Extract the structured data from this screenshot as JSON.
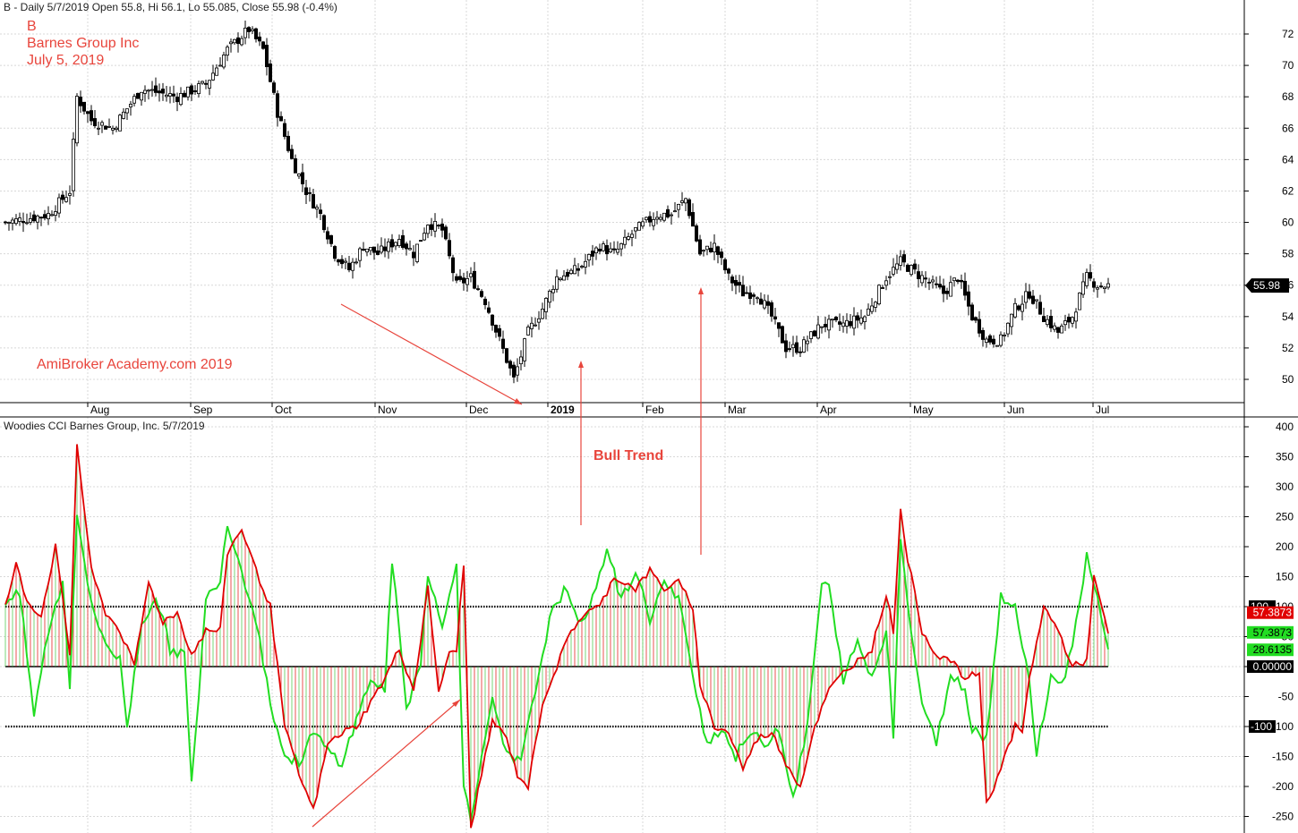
{
  "header": {
    "price_title": "B - Daily 5/7/2019 Open 55.8, Hi 56.1, Lo 55.085, Close 55.98 (-0.4%)",
    "cci_title": "Woodies CCI  Barnes Group, Inc. 5/7/2019"
  },
  "annotations": {
    "ticker": "B",
    "company": "Barnes Group Inc",
    "date": "July 5, 2019",
    "watermark": "AmiBroker Academy.com   2019",
    "bull_trend": "Bull Trend"
  },
  "colors": {
    "bull_candle": "#ffffff",
    "bear_candle": "#000000",
    "cci_line": "#e00000",
    "turbo_line": "#22dd22",
    "annotation": "#e8453c",
    "grid": "#d8d8d8"
  },
  "chart_data": [
    {
      "type": "candlestick",
      "title": "B - Daily 5/7/2019 Open 55.8, Hi 56.1, Lo 55.085, Close 55.98 (-0.4%)",
      "x_tick_labels": [
        "Aug",
        "Sep",
        "Oct",
        "Nov",
        "Dec",
        "2019",
        "Feb",
        "Mar",
        "Apr",
        "May",
        "Jun",
        "Jul"
      ],
      "y_ticks": [
        50,
        52,
        54,
        56,
        58,
        60,
        62,
        64,
        66,
        68,
        70,
        72
      ],
      "ylim": [
        48.5,
        73
      ],
      "last_close_label": "55.98",
      "close_path_keypoints": [
        [
          0,
          60.0
        ],
        [
          12,
          60.5
        ],
        [
          18,
          62.0
        ],
        [
          20,
          68.0
        ],
        [
          24,
          66.5
        ],
        [
          30,
          66.0
        ],
        [
          38,
          68.5
        ],
        [
          48,
          68.0
        ],
        [
          56,
          68.8
        ],
        [
          62,
          71.0
        ],
        [
          68,
          72.3
        ],
        [
          72,
          71.0
        ],
        [
          76,
          67.0
        ],
        [
          80,
          64.0
        ],
        [
          84,
          62.0
        ],
        [
          88,
          60.5
        ],
        [
          92,
          58.0
        ],
        [
          96,
          57.0
        ],
        [
          100,
          58.5
        ],
        [
          104,
          58.0
        ],
        [
          110,
          59.0
        ],
        [
          114,
          58.0
        ],
        [
          118,
          60.0
        ],
        [
          122,
          59.5
        ],
        [
          126,
          56.0
        ],
        [
          130,
          56.5
        ],
        [
          134,
          55.0
        ],
        [
          138,
          52.5
        ],
        [
          142,
          50.0
        ],
        [
          146,
          53.0
        ],
        [
          150,
          54.5
        ],
        [
          154,
          56.5
        ],
        [
          160,
          57.0
        ],
        [
          166,
          58.5
        ],
        [
          170,
          58.0
        ],
        [
          176,
          59.5
        ],
        [
          182,
          60.5
        ],
        [
          186,
          60.5
        ],
        [
          190,
          61.5
        ],
        [
          194,
          58.0
        ],
        [
          198,
          58.5
        ],
        [
          202,
          56.5
        ],
        [
          206,
          55.5
        ],
        [
          210,
          55.5
        ],
        [
          214,
          54.0
        ],
        [
          218,
          52.0
        ],
        [
          222,
          52.0
        ],
        [
          228,
          53.5
        ],
        [
          234,
          53.5
        ],
        [
          240,
          54.0
        ],
        [
          246,
          56.5
        ],
        [
          250,
          57.5
        ],
        [
          256,
          56.5
        ],
        [
          262,
          55.5
        ],
        [
          266,
          56.5
        ],
        [
          270,
          54.0
        ],
        [
          274,
          52.5
        ],
        [
          278,
          52.5
        ],
        [
          282,
          54.5
        ],
        [
          286,
          55.5
        ],
        [
          290,
          54.0
        ],
        [
          294,
          53.0
        ],
        [
          298,
          54.0
        ],
        [
          302,
          56.5
        ],
        [
          305,
          56.0
        ],
        [
          308,
          55.98
        ]
      ]
    },
    {
      "type": "line",
      "title": "Woodies CCI  Barnes Group, Inc. 5/7/2019",
      "y_ticks": [
        -250,
        -200,
        -150,
        -100,
        -50,
        0,
        50,
        100,
        150,
        200,
        250,
        300,
        350,
        400
      ],
      "ylim": [
        -280,
        405
      ],
      "reference_levels": [
        100,
        0,
        -100
      ],
      "level_labels": [
        "100",
        "0.00000",
        "-100"
      ],
      "last_values": {
        "cci": "57.3873",
        "cci_right": "57.3873",
        "turbo": "28.6135"
      },
      "series": [
        {
          "name": "CCI",
          "keypoints": [
            [
              0,
              100
            ],
            [
              3,
              170
            ],
            [
              6,
              110
            ],
            [
              10,
              85
            ],
            [
              14,
              200
            ],
            [
              18,
              20
            ],
            [
              20,
              370
            ],
            [
              24,
              160
            ],
            [
              28,
              90
            ],
            [
              32,
              60
            ],
            [
              36,
              0
            ],
            [
              40,
              140
            ],
            [
              44,
              75
            ],
            [
              48,
              90
            ],
            [
              52,
              20
            ],
            [
              56,
              60
            ],
            [
              60,
              60
            ],
            [
              62,
              190
            ],
            [
              66,
              230
            ],
            [
              70,
              160
            ],
            [
              74,
              100
            ],
            [
              78,
              -100
            ],
            [
              82,
              -180
            ],
            [
              86,
              -240
            ],
            [
              90,
              -130
            ],
            [
              94,
              -110
            ],
            [
              98,
              -100
            ],
            [
              102,
              -60
            ],
            [
              106,
              -20
            ],
            [
              110,
              30
            ],
            [
              114,
              -40
            ],
            [
              118,
              130
            ],
            [
              121,
              -40
            ],
            [
              124,
              20
            ],
            [
              126,
              30
            ],
            [
              128,
              170
            ],
            [
              130,
              -270
            ],
            [
              134,
              -150
            ],
            [
              136,
              -90
            ],
            [
              140,
              -120
            ],
            [
              143,
              -180
            ],
            [
              146,
              -200
            ],
            [
              150,
              -60
            ],
            [
              154,
              0
            ],
            [
              158,
              60
            ],
            [
              162,
              90
            ],
            [
              166,
              100
            ],
            [
              170,
              150
            ],
            [
              176,
              130
            ],
            [
              180,
              160
            ],
            [
              184,
              130
            ],
            [
              188,
              140
            ],
            [
              192,
              100
            ],
            [
              194,
              -30
            ],
            [
              198,
              -100
            ],
            [
              202,
              -110
            ],
            [
              206,
              -170
            ],
            [
              210,
              -120
            ],
            [
              214,
              -110
            ],
            [
              218,
              -160
            ],
            [
              222,
              -200
            ],
            [
              226,
              -100
            ],
            [
              230,
              -40
            ],
            [
              234,
              -10
            ],
            [
              238,
              10
            ],
            [
              242,
              30
            ],
            [
              246,
              120
            ],
            [
              248,
              60
            ],
            [
              250,
              260
            ],
            [
              252,
              180
            ],
            [
              256,
              60
            ],
            [
              260,
              20
            ],
            [
              264,
              10
            ],
            [
              268,
              -20
            ],
            [
              272,
              -10
            ],
            [
              274,
              -230
            ],
            [
              278,
              -170
            ],
            [
              282,
              -100
            ],
            [
              284,
              -110
            ],
            [
              286,
              -20
            ],
            [
              290,
              100
            ],
            [
              294,
              60
            ],
            [
              298,
              0
            ],
            [
              302,
              10
            ],
            [
              304,
              150
            ],
            [
              306,
              100
            ],
            [
              308,
              57.3873
            ]
          ]
        },
        {
          "name": "Turbo CCI",
          "keypoints": [
            [
              0,
              110
            ],
            [
              4,
              120
            ],
            [
              8,
              -80
            ],
            [
              12,
              60
            ],
            [
              16,
              140
            ],
            [
              18,
              -30
            ],
            [
              20,
              260
            ],
            [
              24,
              100
            ],
            [
              28,
              40
            ],
            [
              32,
              10
            ],
            [
              34,
              -100
            ],
            [
              38,
              70
            ],
            [
              42,
              120
            ],
            [
              46,
              30
            ],
            [
              50,
              20
            ],
            [
              52,
              -200
            ],
            [
              56,
              110
            ],
            [
              60,
              150
            ],
            [
              62,
              240
            ],
            [
              66,
              160
            ],
            [
              70,
              80
            ],
            [
              74,
              -60
            ],
            [
              78,
              -150
            ],
            [
              82,
              -160
            ],
            [
              86,
              -110
            ],
            [
              90,
              -140
            ],
            [
              94,
              -160
            ],
            [
              98,
              -90
            ],
            [
              102,
              -20
            ],
            [
              106,
              -40
            ],
            [
              108,
              180
            ],
            [
              112,
              -70
            ],
            [
              116,
              10
            ],
            [
              118,
              160
            ],
            [
              122,
              60
            ],
            [
              126,
              180
            ],
            [
              128,
              -200
            ],
            [
              130,
              -260
            ],
            [
              134,
              -110
            ],
            [
              136,
              -60
            ],
            [
              140,
              -150
            ],
            [
              144,
              -160
            ],
            [
              148,
              -40
            ],
            [
              152,
              80
            ],
            [
              156,
              130
            ],
            [
              160,
              70
            ],
            [
              164,
              110
            ],
            [
              168,
              200
            ],
            [
              172,
              110
            ],
            [
              176,
              160
            ],
            [
              180,
              80
            ],
            [
              184,
              140
            ],
            [
              188,
              110
            ],
            [
              192,
              -10
            ],
            [
              196,
              -130
            ],
            [
              200,
              -100
            ],
            [
              204,
              -150
            ],
            [
              208,
              -110
            ],
            [
              212,
              -130
            ],
            [
              216,
              -100
            ],
            [
              220,
              -220
            ],
            [
              224,
              -100
            ],
            [
              228,
              140
            ],
            [
              230,
              130
            ],
            [
              234,
              -20
            ],
            [
              238,
              40
            ],
            [
              242,
              -20
            ],
            [
              246,
              60
            ],
            [
              248,
              -110
            ],
            [
              250,
              220
            ],
            [
              252,
              100
            ],
            [
              256,
              -60
            ],
            [
              260,
              -130
            ],
            [
              264,
              -10
            ],
            [
              268,
              -40
            ],
            [
              270,
              -100
            ],
            [
              274,
              -120
            ],
            [
              278,
              120
            ],
            [
              282,
              100
            ],
            [
              286,
              -30
            ],
            [
              288,
              -140
            ],
            [
              292,
              -20
            ],
            [
              296,
              -20
            ],
            [
              300,
              100
            ],
            [
              302,
              190
            ],
            [
              306,
              80
            ],
            [
              308,
              28.6135
            ]
          ]
        }
      ]
    }
  ]
}
